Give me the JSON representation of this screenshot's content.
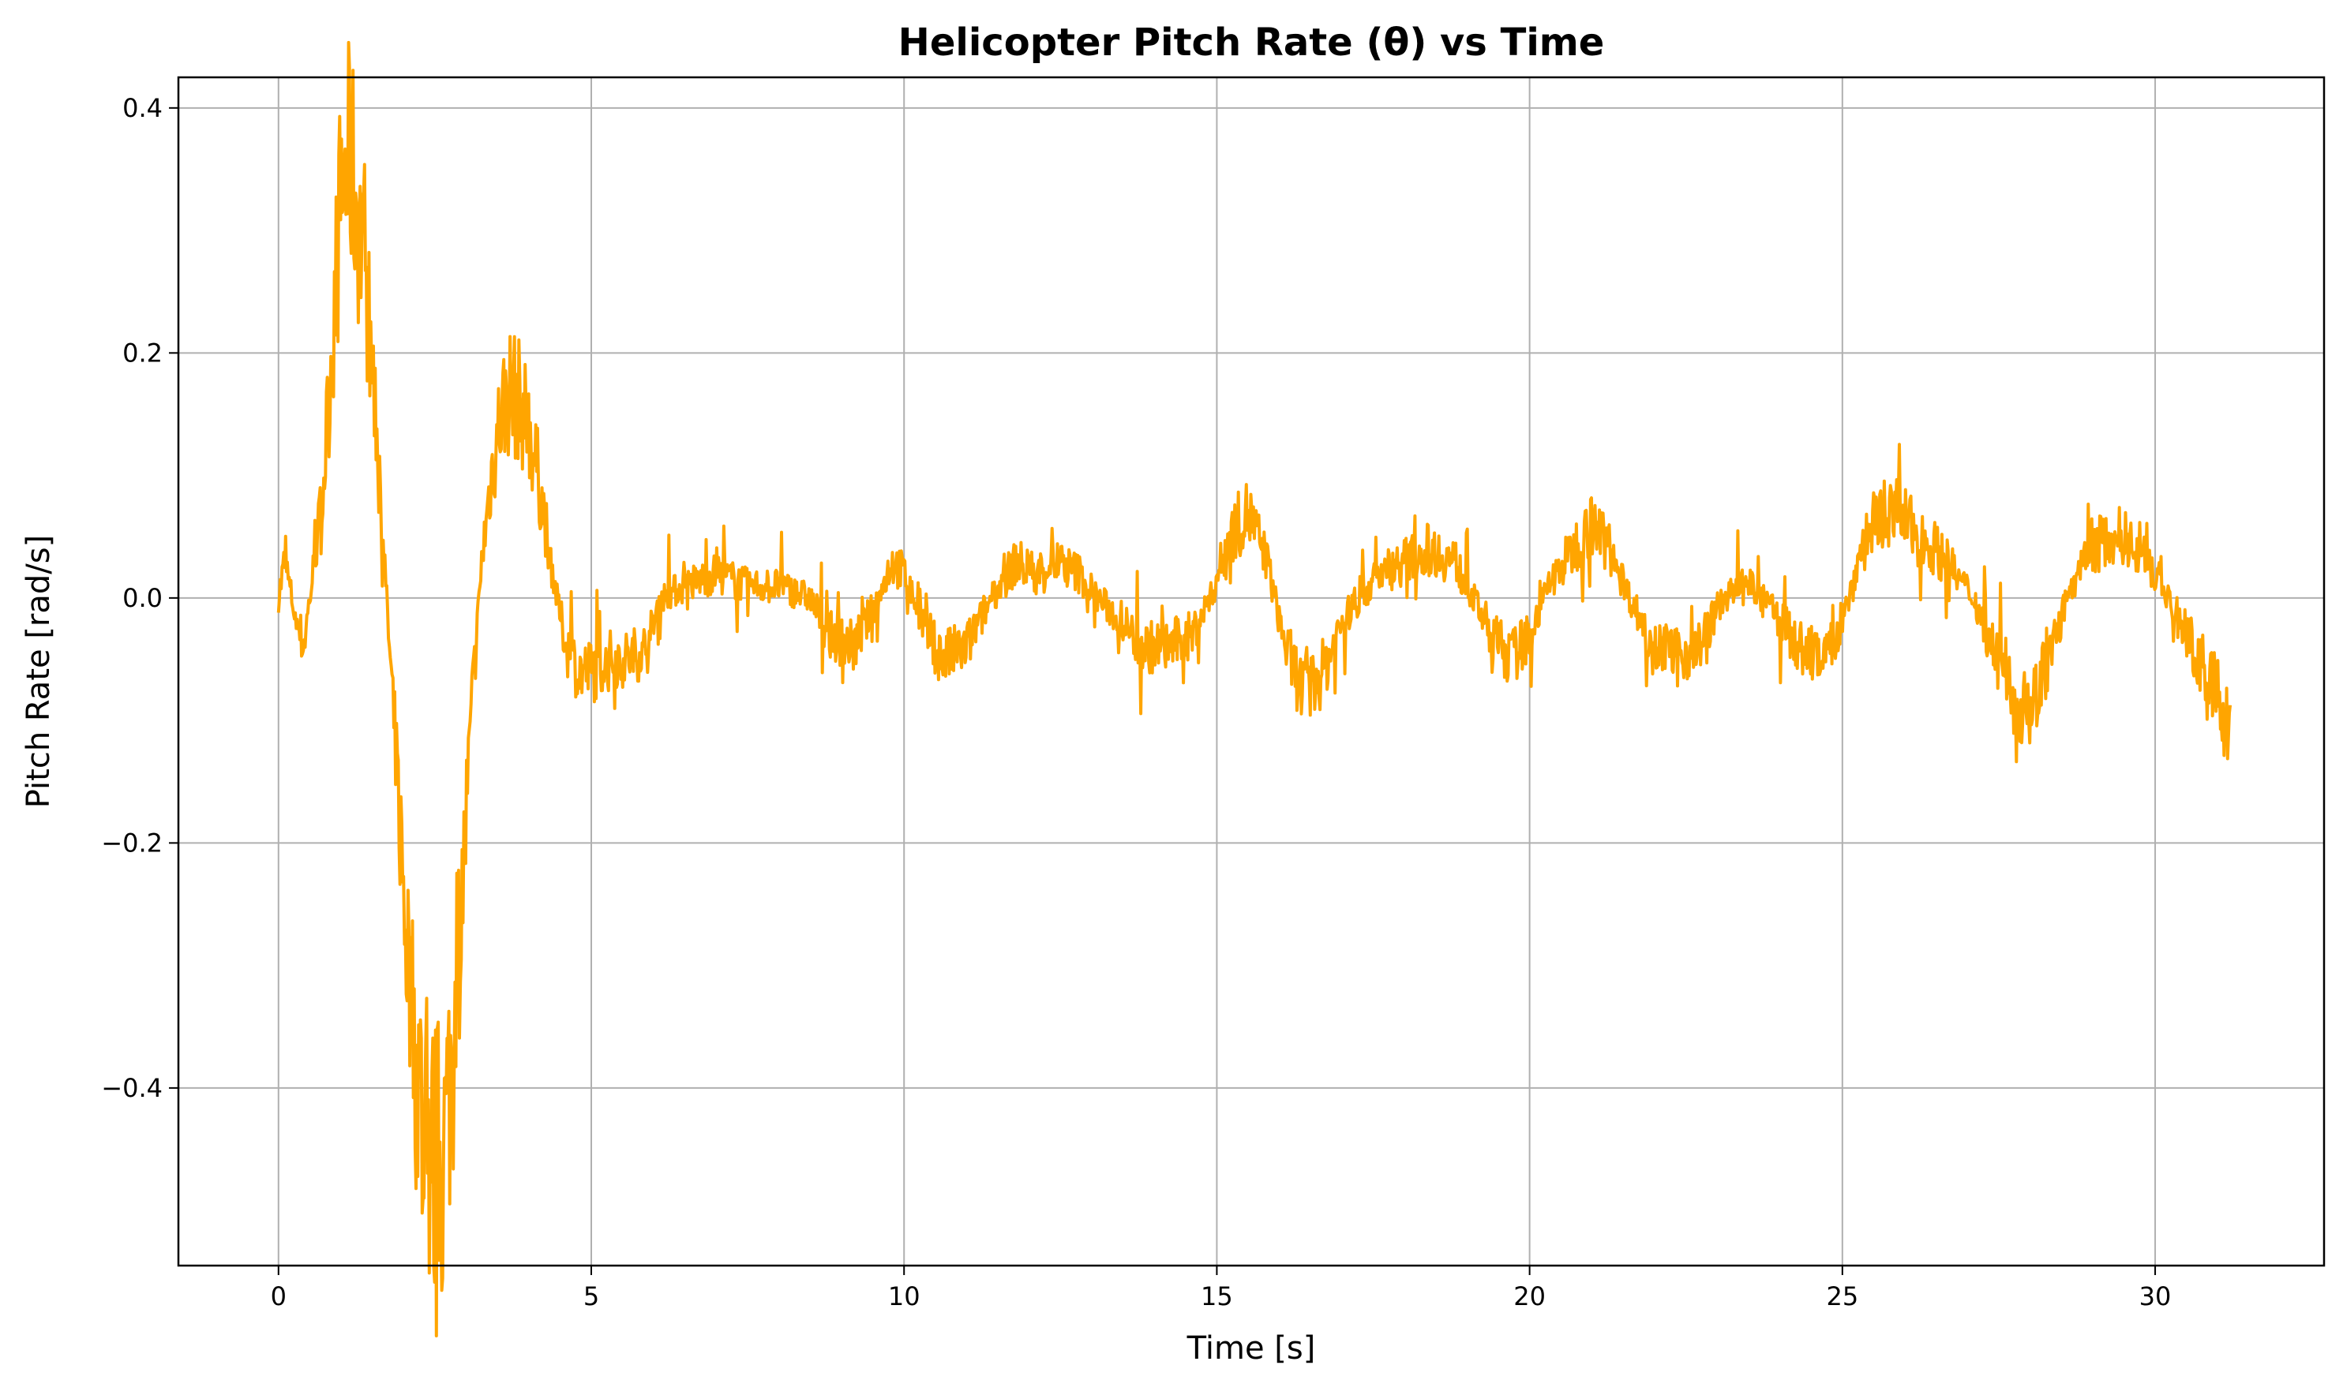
{
  "chart_data": {
    "type": "line",
    "title": "Helicopter Pitch Rate (θ) vs Time",
    "xlabel": "Time [s]",
    "ylabel": "Pitch Rate [rad/s]",
    "xlim": [
      -1.6,
      32.7
    ],
    "ylim": [
      -0.545,
      0.425
    ],
    "xticks": [
      0,
      5,
      10,
      15,
      20,
      25,
      30
    ],
    "xtick_labels": [
      "0",
      "5",
      "10",
      "15",
      "20",
      "25",
      "30"
    ],
    "yticks": [
      -0.4,
      -0.2,
      0.0,
      0.2,
      0.4
    ],
    "ytick_labels": [
      "−0.4",
      "−0.2",
      "0.0",
      "0.2",
      "0.4"
    ],
    "grid": true,
    "legend": false,
    "line_color": "#FFA500",
    "series": [
      {
        "x": [
          0.0,
          0.1,
          0.25,
          0.4,
          0.55,
          0.7,
          0.85,
          1.0,
          1.15,
          1.3,
          1.45,
          1.6,
          1.75,
          1.9,
          2.05,
          2.2,
          2.35,
          2.5,
          2.65,
          2.8,
          2.95,
          3.1,
          3.25,
          3.4,
          3.55,
          3.7,
          3.85,
          4.0,
          4.15,
          4.3,
          4.45,
          4.6,
          4.8,
          5.0,
          5.3,
          5.6,
          5.9,
          6.1,
          6.5,
          7.0,
          7.5,
          8.0,
          8.5,
          8.8,
          9.2,
          9.6,
          9.8,
          10.0,
          10.3,
          10.6,
          11.0,
          11.4,
          11.8,
          12.1,
          12.4,
          12.8,
          13.1,
          13.5,
          13.8,
          14.2,
          14.6,
          14.9,
          15.2,
          15.5,
          15.8,
          16.1,
          16.4,
          16.7,
          17.0,
          17.3,
          17.6,
          18.0,
          18.4,
          18.8,
          19.1,
          19.4,
          19.7,
          20.0,
          20.3,
          20.7,
          21.0,
          21.3,
          21.6,
          21.9,
          22.3,
          22.7,
          23.1,
          23.5,
          23.9,
          24.3,
          24.7,
          25.0,
          25.3,
          25.6,
          25.9,
          26.2,
          26.5,
          26.8,
          27.1,
          27.4,
          27.7,
          28.0,
          28.3,
          28.6,
          28.9,
          29.2,
          29.5,
          29.8,
          30.1,
          30.4,
          30.7,
          31.0,
          31.2
        ],
        "y": [
          0.0,
          0.03,
          -0.01,
          -0.04,
          0.02,
          0.08,
          0.2,
          0.33,
          0.36,
          0.3,
          0.22,
          0.12,
          -0.02,
          -0.15,
          -0.28,
          -0.38,
          -0.44,
          -0.47,
          -0.45,
          -0.36,
          -0.23,
          -0.08,
          0.03,
          0.1,
          0.15,
          0.17,
          0.16,
          0.14,
          0.1,
          0.05,
          0.0,
          -0.04,
          -0.06,
          -0.06,
          -0.05,
          -0.05,
          -0.04,
          0.0,
          0.01,
          0.02,
          0.01,
          0.01,
          0.0,
          -0.03,
          -0.04,
          0.0,
          0.03,
          0.02,
          -0.02,
          -0.05,
          -0.04,
          0.0,
          0.03,
          0.02,
          0.03,
          0.02,
          0.0,
          -0.02,
          -0.04,
          -0.04,
          -0.03,
          0.0,
          0.05,
          0.07,
          0.03,
          -0.04,
          -0.08,
          -0.06,
          -0.02,
          0.0,
          0.02,
          0.03,
          0.04,
          0.03,
          0.0,
          -0.03,
          -0.05,
          -0.03,
          0.01,
          0.04,
          0.06,
          0.04,
          0.0,
          -0.03,
          -0.05,
          -0.04,
          0.0,
          0.01,
          -0.01,
          -0.04,
          -0.05,
          -0.02,
          0.04,
          0.07,
          0.07,
          0.05,
          0.04,
          0.02,
          0.0,
          -0.04,
          -0.08,
          -0.09,
          -0.05,
          0.0,
          0.03,
          0.05,
          0.05,
          0.04,
          0.01,
          -0.02,
          -0.05,
          -0.08,
          -0.11
        ]
      }
    ]
  }
}
